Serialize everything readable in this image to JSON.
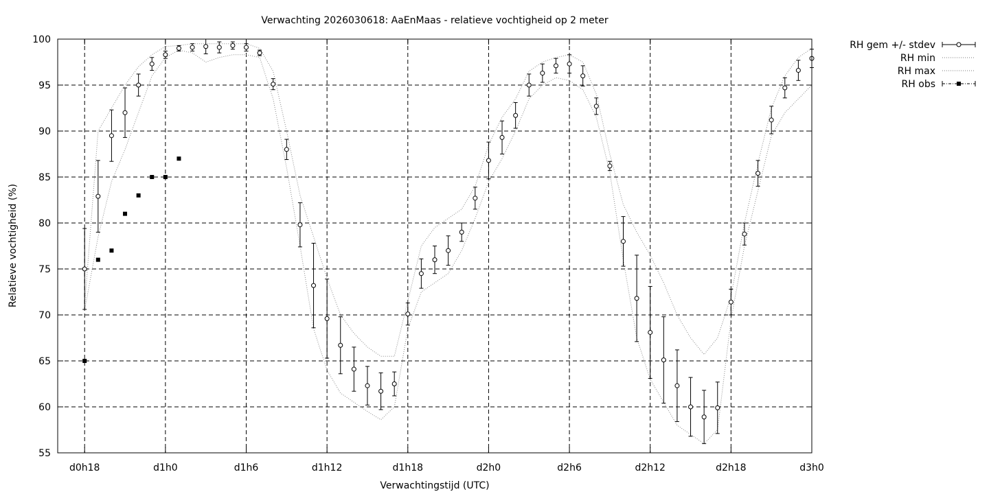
{
  "chart_data": {
    "type": "line",
    "title": "Verwachting 2026030618: AaEnMaas - relatieve vochtigheid op 2 meter",
    "xlabel": "Verwachtingstijd (UTC)",
    "ylabel": "Relatieve vochtigheid (%)",
    "xlim": [
      16,
      72
    ],
    "ylim": [
      55,
      100
    ],
    "x_ticks": [
      {
        "x": 18,
        "label": "d0h18"
      },
      {
        "x": 24,
        "label": "d1h0"
      },
      {
        "x": 30,
        "label": "d1h6"
      },
      {
        "x": 36,
        "label": "d1h12"
      },
      {
        "x": 42,
        "label": "d1h18"
      },
      {
        "x": 48,
        "label": "d2h0"
      },
      {
        "x": 54,
        "label": "d2h6"
      },
      {
        "x": 60,
        "label": "d2h12"
      },
      {
        "x": 66,
        "label": "d2h18"
      },
      {
        "x": 72,
        "label": "d3h0"
      }
    ],
    "y_ticks": [
      55,
      60,
      65,
      70,
      75,
      80,
      85,
      90,
      95,
      100
    ],
    "grid": true,
    "legend_position": "outside-top-right",
    "x": [
      18,
      19,
      20,
      21,
      22,
      23,
      24,
      25,
      26,
      27,
      28,
      29,
      30,
      31,
      32,
      33,
      34,
      35,
      36,
      37,
      38,
      39,
      40,
      41,
      42,
      43,
      44,
      45,
      46,
      47,
      48,
      49,
      50,
      51,
      52,
      53,
      54,
      55,
      56,
      57,
      58,
      59,
      60,
      61,
      62,
      63,
      64,
      65,
      66,
      67,
      68,
      69,
      70,
      71,
      72
    ],
    "series": [
      {
        "name": "RH gem +/- stdev",
        "style": "points-errorbars",
        "values": [
          75.0,
          82.9,
          89.5,
          92.0,
          95.0,
          97.3,
          98.3,
          99.0,
          99.1,
          99.2,
          99.1,
          99.3,
          99.1,
          98.5,
          95.1,
          88.0,
          79.8,
          73.2,
          69.6,
          66.7,
          64.1,
          62.3,
          61.7,
          62.5,
          70.1,
          74.5,
          76.0,
          77.0,
          79.0,
          82.7,
          86.8,
          89.3,
          91.7,
          95.0,
          96.3,
          97.1,
          97.3,
          96.0,
          92.7,
          86.2,
          78.0,
          71.8,
          68.1,
          65.1,
          62.3,
          60.0,
          58.9,
          59.9,
          71.4,
          78.8,
          85.4,
          91.2,
          94.7,
          96.6,
          97.9
        ],
        "stdev": [
          4.4,
          3.9,
          2.8,
          2.7,
          1.2,
          0.7,
          0.4,
          0.3,
          0.4,
          0.8,
          0.6,
          0.4,
          0.4,
          0.3,
          0.6,
          1.1,
          2.4,
          4.6,
          4.3,
          3.1,
          2.4,
          2.1,
          2.0,
          1.3,
          1.2,
          1.6,
          1.5,
          1.6,
          1.0,
          1.2,
          2.0,
          1.8,
          1.4,
          1.2,
          1.0,
          0.8,
          1.0,
          1.1,
          0.9,
          0.5,
          2.7,
          4.7,
          5.0,
          4.7,
          3.9,
          3.2,
          2.9,
          2.8,
          1.4,
          1.2,
          1.4,
          1.5,
          1.1,
          1.1,
          1.0
        ]
      },
      {
        "name": "RH min",
        "style": "dotted",
        "values": [
          70.5,
          78.5,
          84.5,
          88.0,
          92.0,
          96.0,
          98.0,
          98.8,
          98.5,
          97.5,
          98.0,
          98.3,
          98.3,
          98.0,
          93.5,
          86.0,
          77.5,
          68.5,
          64.0,
          61.5,
          60.5,
          59.5,
          58.6,
          60.0,
          68.5,
          72.5,
          73.5,
          74.5,
          77.0,
          80.5,
          84.5,
          87.0,
          90.0,
          93.5,
          95.0,
          95.8,
          95.5,
          94.5,
          91.5,
          85.5,
          76.0,
          67.5,
          63.0,
          60.5,
          58.0,
          57.0,
          56.0,
          57.5,
          69.5,
          77.5,
          83.5,
          89.5,
          92.0,
          93.5,
          95.0
        ]
      },
      {
        "name": "RH max",
        "style": "dotted",
        "values": [
          71.0,
          90.0,
          92.5,
          95.0,
          97.0,
          98.3,
          99.2,
          99.3,
          99.5,
          99.5,
          99.5,
          99.5,
          99.5,
          99.0,
          96.5,
          90.0,
          83.0,
          78.5,
          74.0,
          70.0,
          68.0,
          66.5,
          65.5,
          65.5,
          71.5,
          77.5,
          79.5,
          80.5,
          81.5,
          84.0,
          88.5,
          91.5,
          93.5,
          96.5,
          97.5,
          98.0,
          98.3,
          97.5,
          94.0,
          87.5,
          82.0,
          79.0,
          76.5,
          73.5,
          70.0,
          67.5,
          65.7,
          67.5,
          72.0,
          80.0,
          86.5,
          92.5,
          96.0,
          98.0,
          99.0
        ]
      },
      {
        "name": "RH obs",
        "style": "filled-squares",
        "x": [
          18,
          19,
          20,
          21,
          22,
          23,
          24,
          25
        ],
        "values": [
          65,
          76,
          77,
          81,
          83,
          85,
          85,
          87
        ]
      }
    ]
  }
}
